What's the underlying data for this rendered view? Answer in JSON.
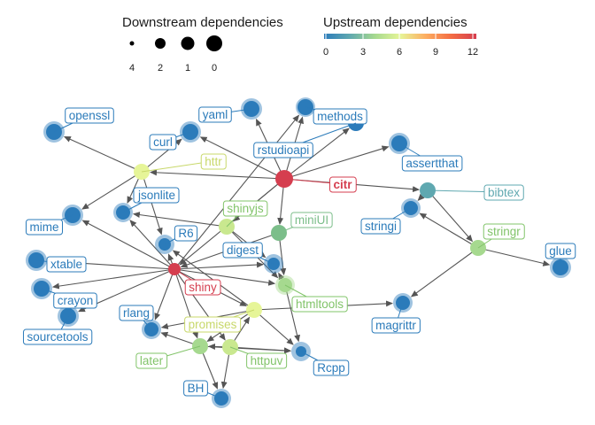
{
  "legend": {
    "size": {
      "title": "Downstream dependencies",
      "labels": [
        "4",
        "2",
        "1",
        "0"
      ]
    },
    "color": {
      "title": "Upstream dependencies",
      "ticks": [
        "0",
        "3",
        "6",
        "9",
        "12"
      ],
      "gradient": [
        "#2b7bba",
        "#5fa8b0",
        "#a6d98f",
        "#e6f598",
        "#fdae61",
        "#f46d43",
        "#d53e4f"
      ]
    }
  },
  "graph": {
    "nodes": [
      {
        "id": "openssl",
        "label": "openssl",
        "color": "#2b7bba"
      },
      {
        "id": "yaml",
        "label": "yaml",
        "color": "#2b7bba"
      },
      {
        "id": "methods",
        "label": "methods",
        "color": "#2b7bba"
      },
      {
        "id": "curl",
        "label": "curl",
        "color": "#2b7bba"
      },
      {
        "id": "rstudioapi",
        "label": "rstudioapi",
        "color": "#2b7bba"
      },
      {
        "id": "assertthat",
        "label": "assertthat",
        "color": "#2b7bba"
      },
      {
        "id": "httr",
        "label": "httr",
        "color": "#e6f598"
      },
      {
        "id": "citr",
        "label": "citr",
        "color": "#d53e4f"
      },
      {
        "id": "jsonlite",
        "label": "jsonlite",
        "color": "#2b7bba"
      },
      {
        "id": "bibtex",
        "label": "bibtex",
        "color": "#5fa8b0"
      },
      {
        "id": "shinyjs",
        "label": "shinyjs",
        "color": "#c9e88f"
      },
      {
        "id": "miniUI",
        "label": "miniUI",
        "color": "#7cbe8a"
      },
      {
        "id": "mime",
        "label": "mime",
        "color": "#2b7bba"
      },
      {
        "id": "stringi",
        "label": "stringi",
        "color": "#2b7bba"
      },
      {
        "id": "R6",
        "label": "R6",
        "color": "#2b7bba"
      },
      {
        "id": "stringr",
        "label": "stringr",
        "color": "#a6d98f"
      },
      {
        "id": "glue",
        "label": "glue",
        "color": "#2b7bba"
      },
      {
        "id": "digest",
        "label": "digest",
        "color": "#2b7bba"
      },
      {
        "id": "xtable",
        "label": "xtable",
        "color": "#2b7bba"
      },
      {
        "id": "shiny",
        "label": "shiny",
        "color": "#d53e4f"
      },
      {
        "id": "crayon",
        "label": "crayon",
        "color": "#2b7bba"
      },
      {
        "id": "htmltools",
        "label": "htmltools",
        "color": "#a6d98f"
      },
      {
        "id": "magrittr",
        "label": "magrittr",
        "color": "#2b7bba"
      },
      {
        "id": "sourcetools",
        "label": "sourcetools",
        "color": "#2b7bba"
      },
      {
        "id": "rlang",
        "label": "rlang",
        "color": "#2b7bba"
      },
      {
        "id": "promises",
        "label": "promises",
        "color": "#e6f598"
      },
      {
        "id": "later",
        "label": "later",
        "color": "#a6d98f"
      },
      {
        "id": "httpuv",
        "label": "httpuv",
        "color": "#c9e88f"
      },
      {
        "id": "Rcpp",
        "label": "Rcpp",
        "color": "#2b7bba"
      },
      {
        "id": "BH",
        "label": "BH",
        "color": "#2b7bba"
      }
    ],
    "edges": [
      [
        "citr",
        "httr"
      ],
      [
        "citr",
        "rstudioapi"
      ],
      [
        "citr",
        "yaml"
      ],
      [
        "citr",
        "methods"
      ],
      [
        "citr",
        "assertthat"
      ],
      [
        "citr",
        "bibtex"
      ],
      [
        "citr",
        "miniUI"
      ],
      [
        "citr",
        "shinyjs"
      ],
      [
        "citr",
        "shiny"
      ],
      [
        "citr",
        "curl"
      ],
      [
        "httr",
        "openssl"
      ],
      [
        "httr",
        "curl"
      ],
      [
        "httr",
        "jsonlite"
      ],
      [
        "httr",
        "mime"
      ],
      [
        "httr",
        "R6"
      ],
      [
        "bibtex",
        "stringi"
      ],
      [
        "bibtex",
        "stringr"
      ],
      [
        "stringr",
        "stringi"
      ],
      [
        "stringr",
        "glue"
      ],
      [
        "stringr",
        "magrittr"
      ],
      [
        "shinyjs",
        "jsonlite"
      ],
      [
        "shinyjs",
        "digest"
      ],
      [
        "shinyjs",
        "htmltools"
      ],
      [
        "miniUI",
        "htmltools"
      ],
      [
        "miniUI",
        "shiny"
      ],
      [
        "shiny",
        "mime"
      ],
      [
        "shiny",
        "xtable"
      ],
      [
        "shiny",
        "crayon"
      ],
      [
        "shiny",
        "sourcetools"
      ],
      [
        "shiny",
        "rlang"
      ],
      [
        "shiny",
        "later"
      ],
      [
        "shiny",
        "promises"
      ],
      [
        "shiny",
        "httpuv"
      ],
      [
        "shiny",
        "htmltools"
      ],
      [
        "shiny",
        "digest"
      ],
      [
        "shiny",
        "R6"
      ],
      [
        "shiny",
        "jsonlite"
      ],
      [
        "shiny",
        "methods"
      ],
      [
        "htmltools",
        "digest"
      ],
      [
        "htmltools",
        "Rcpp"
      ],
      [
        "promises",
        "R6"
      ],
      [
        "promises",
        "rlang"
      ],
      [
        "promises",
        "later"
      ],
      [
        "promises",
        "magrittr"
      ],
      [
        "promises",
        "Rcpp"
      ],
      [
        "later",
        "Rcpp"
      ],
      [
        "later",
        "BH"
      ],
      [
        "later",
        "rlang"
      ],
      [
        "httpuv",
        "later"
      ],
      [
        "httpuv",
        "Rcpp"
      ],
      [
        "httpuv",
        "BH"
      ],
      [
        "httpuv",
        "promises"
      ]
    ]
  }
}
